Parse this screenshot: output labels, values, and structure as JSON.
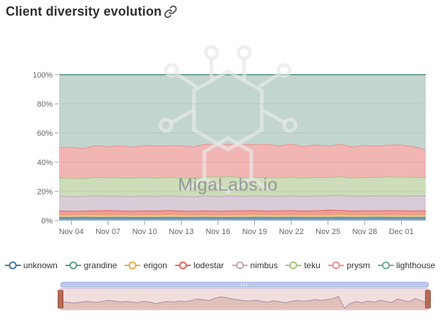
{
  "header": {
    "title": "Client diversity evolution"
  },
  "watermark": {
    "text": "MigaLabs.io"
  },
  "chart_data": {
    "type": "area",
    "stacking": "percent",
    "title": "Client diversity evolution",
    "xlabel": "",
    "ylabel": "",
    "grid": true,
    "legend_position": "bottom",
    "ylim": [
      0,
      100
    ],
    "y_ticks": [
      0,
      20,
      40,
      60,
      80,
      100
    ],
    "y_tick_labels": [
      "0%",
      "20%",
      "40%",
      "60%",
      "80%",
      "100%"
    ],
    "x": [
      "Nov 03",
      "Nov 04",
      "Nov 05",
      "Nov 06",
      "Nov 07",
      "Nov 08",
      "Nov 09",
      "Nov 10",
      "Nov 11",
      "Nov 12",
      "Nov 13",
      "Nov 14",
      "Nov 15",
      "Nov 16",
      "Nov 17",
      "Nov 18",
      "Nov 19",
      "Nov 20",
      "Nov 21",
      "Nov 22",
      "Nov 23",
      "Nov 24",
      "Nov 25",
      "Nov 26",
      "Nov 27",
      "Nov 28",
      "Nov 29",
      "Nov 30",
      "Dec 01",
      "Dec 02",
      "Dec 03"
    ],
    "x_tick_indices": [
      1,
      4,
      7,
      10,
      13,
      16,
      19,
      22,
      25,
      28
    ],
    "x_tick_labels": [
      "Nov 04",
      "Nov 07",
      "Nov 10",
      "Nov 13",
      "Nov 16",
      "Nov 19",
      "Nov 22",
      "Nov 25",
      "Nov 28",
      "Dec 01"
    ],
    "series": [
      {
        "name": "unknown",
        "color": "#4a76a4",
        "fill": "#86a9c6",
        "values": [
          1.8,
          1.8,
          1.9,
          1.8,
          1.8,
          1.9,
          1.8,
          1.8,
          1.8,
          1.9,
          1.8,
          1.8,
          1.9,
          1.8,
          1.8,
          1.8,
          1.9,
          1.8,
          1.8,
          1.9,
          1.8,
          1.8,
          1.8,
          1.9,
          1.8,
          1.8,
          1.9,
          1.8,
          1.8,
          1.8,
          1.8
        ]
      },
      {
        "name": "grandine",
        "color": "#5f9c8a",
        "fill": "#9dbfae",
        "values": [
          0.8,
          0.8,
          0.8,
          0.8,
          0.8,
          0.8,
          0.8,
          0.8,
          0.8,
          0.8,
          0.8,
          0.8,
          0.8,
          0.8,
          0.8,
          0.8,
          0.8,
          0.8,
          0.8,
          0.8,
          0.8,
          0.8,
          0.8,
          0.8,
          0.8,
          0.8,
          0.8,
          0.8,
          0.8,
          0.8,
          0.8
        ]
      },
      {
        "name": "erigon",
        "color": "#f0a844",
        "fill": "#f6cc8a",
        "values": [
          1.4,
          1.3,
          1.4,
          1.5,
          1.4,
          1.4,
          1.3,
          1.4,
          1.4,
          1.5,
          1.4,
          1.4,
          1.4,
          1.3,
          1.4,
          1.4,
          1.5,
          1.4,
          1.4,
          1.3,
          1.4,
          1.4,
          1.4,
          1.5,
          1.4,
          1.4,
          1.3,
          1.4,
          1.4,
          1.4,
          1.4
        ]
      },
      {
        "name": "lodestar",
        "color": "#e5615e",
        "fill": "#f09b98",
        "values": [
          2.9,
          2.7,
          2.6,
          2.9,
          3.1,
          2.8,
          2.7,
          2.9,
          2.8,
          3.0,
          2.8,
          2.7,
          2.9,
          2.8,
          3.0,
          2.9,
          2.8,
          2.7,
          2.9,
          3.0,
          2.8,
          2.9,
          3.4,
          3.0,
          2.8,
          2.9,
          2.8,
          3.0,
          2.9,
          2.8,
          2.9
        ]
      },
      {
        "name": "nimbus",
        "color": "#c0a7bd",
        "fill": "#d7cdd7",
        "values": [
          10.2,
          9.8,
          10.0,
          10.3,
          9.9,
          10.1,
          10.0,
          10.2,
          9.9,
          10.1,
          10.0,
          9.8,
          10.2,
          10.0,
          10.1,
          9.9,
          10.0,
          10.2,
          9.9,
          10.1,
          10.0,
          10.1,
          9.8,
          10.0,
          10.2,
          9.9,
          10.1,
          10.0,
          9.9,
          10.1,
          10.0
        ]
      },
      {
        "name": "teku",
        "color": "#a2c77e",
        "fill": "#cdddb9",
        "values": [
          12.4,
          12.6,
          12.3,
          12.5,
          12.7,
          12.4,
          12.5,
          12.6,
          12.4,
          12.5,
          12.6,
          12.8,
          13.0,
          13.6,
          13.2,
          12.8,
          12.6,
          12.5,
          12.7,
          12.5,
          12.4,
          12.6,
          12.5,
          12.7,
          12.4,
          12.6,
          12.5,
          12.8,
          12.9,
          12.6,
          12.5
        ]
      },
      {
        "name": "prysm",
        "color": "#ec8f8d",
        "fill": "#f1b6b4",
        "values": [
          20.9,
          21.5,
          20.6,
          21.8,
          21.2,
          22.0,
          21.4,
          21.9,
          22.3,
          21.6,
          22.1,
          21.8,
          22.5,
          21.9,
          22.2,
          22.8,
          22.1,
          22.6,
          21.9,
          22.4,
          21.7,
          22.2,
          21.5,
          22.0,
          21.3,
          21.8,
          21.2,
          21.6,
          21.9,
          20.8,
          18.9
        ]
      },
      {
        "name": "lighthouse",
        "color": "#74a89b",
        "fill": "#c2d6cf",
        "values": [
          49.6,
          49.5,
          50.4,
          48.4,
          49.1,
          48.6,
          49.5,
          48.2,
          48.6,
          48.4,
          48.5,
          49.7,
          47.3,
          48.6,
          47.5,
          47.5,
          47.3,
          47.0,
          48.5,
          46.8,
          49.1,
          47.5,
          48.6,
          47.0,
          49.3,
          47.6,
          48.2,
          47.4,
          47.4,
          48.5,
          50.7
        ]
      }
    ]
  },
  "navigator": {
    "values": [
      0.42,
      0.38,
      0.33,
      0.36,
      0.42,
      0.4,
      0.36,
      0.42,
      0.47,
      0.43,
      0.39,
      0.42,
      0.38,
      0.35,
      0.42,
      0.38,
      0.3,
      0.36,
      0.42,
      0.38,
      0.44,
      0.4,
      0.46,
      0.55,
      0.52,
      0.46,
      0.58,
      0.66,
      0.62,
      0.55,
      0.5,
      0.46,
      0.44,
      0.49,
      0.42,
      0.38,
      0.45,
      0.4,
      0.35,
      0.42,
      0.47,
      0.42,
      0.46,
      0.52,
      0.47,
      0.52,
      0.57,
      0.68,
      0.05,
      0.32,
      0.4,
      0.35,
      0.44,
      0.38,
      0.48,
      0.42,
      0.36,
      0.55,
      0.46,
      0.4,
      0.58,
      0.45,
      0.35
    ],
    "scrollbar_color": "#bcc7e8",
    "track_fill": "#f4e6e2",
    "area_fill": "#e3bdb5",
    "line_color": "#a391a6",
    "mask_color": "rgba(180,120,160,0.06)",
    "outline_color": "#cfc4dd",
    "handle_color": "#b96a57",
    "handle_border": "#96543f"
  }
}
